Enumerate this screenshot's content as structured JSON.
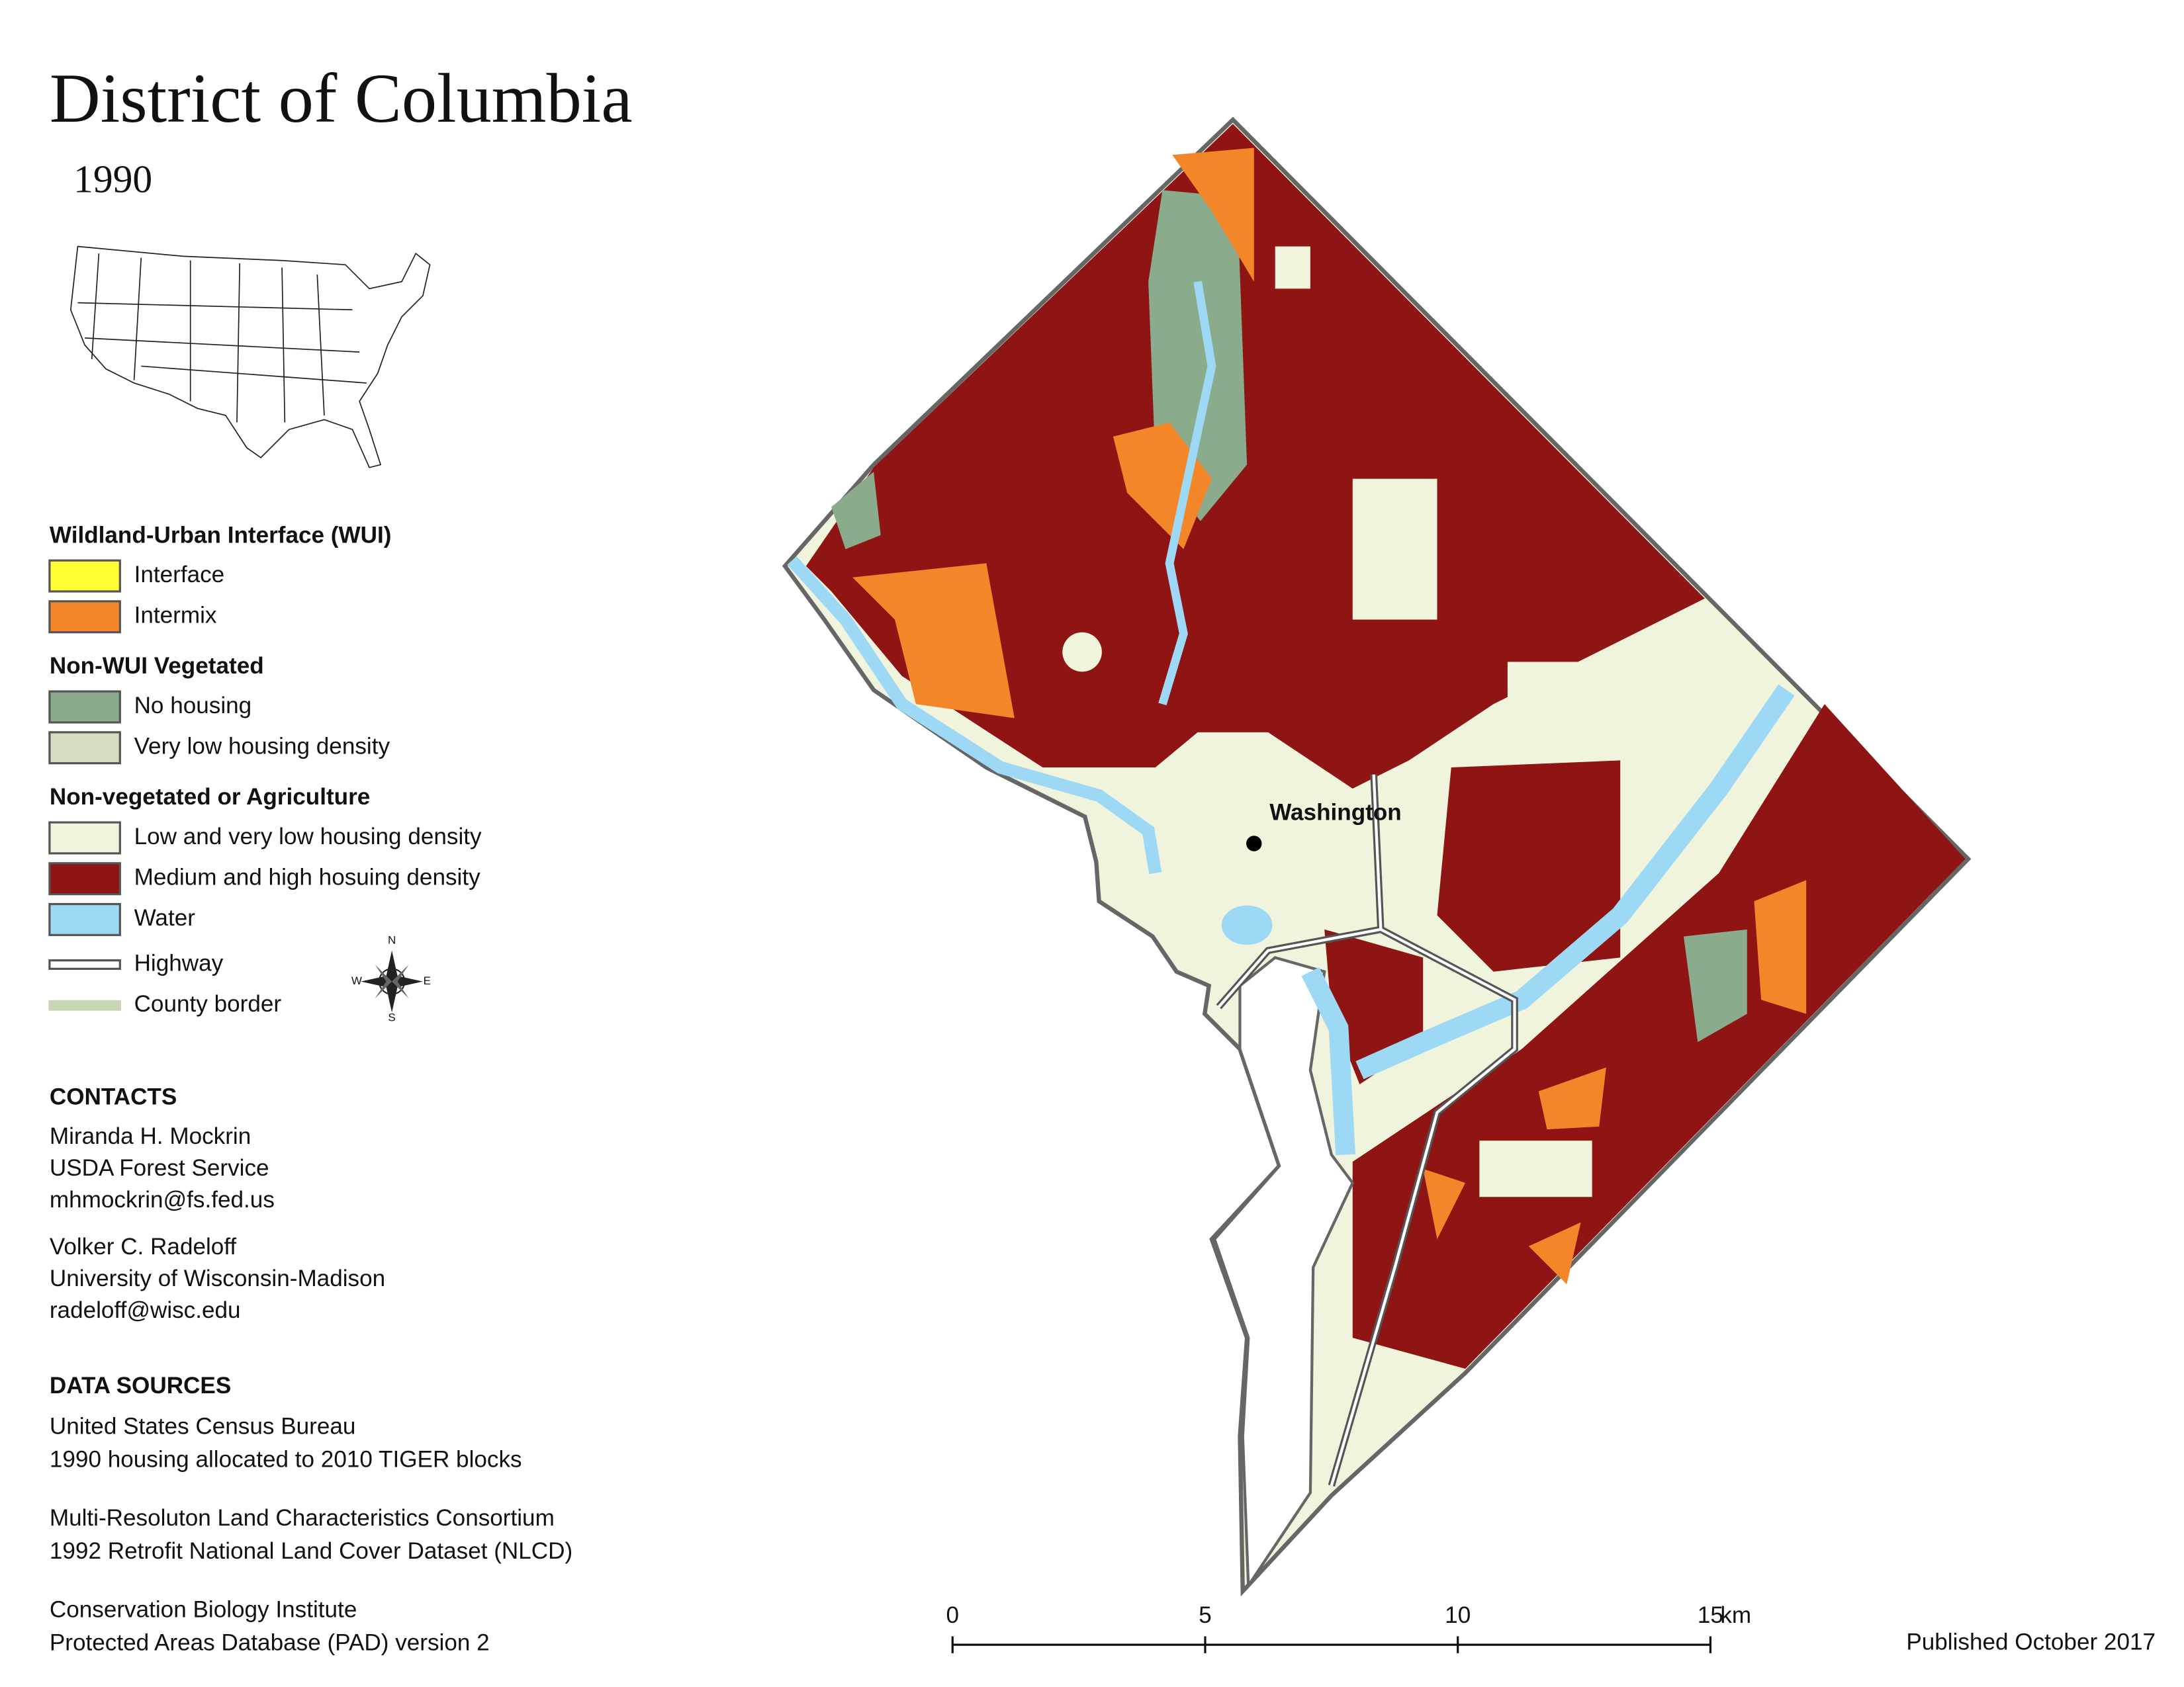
{
  "header": {
    "title": "District of Columbia",
    "subtitle": "1990"
  },
  "legend": {
    "groups": [
      {
        "heading": "Wildland-Urban Interface (WUI)",
        "items": [
          {
            "label": "Interface",
            "color": "#ffff33"
          },
          {
            "label": "Intermix",
            "color": "#f4862a"
          }
        ]
      },
      {
        "heading": "Non-WUI Vegetated",
        "items": [
          {
            "label": "No housing",
            "color": "#8aab8c"
          },
          {
            "label": "Very low housing density",
            "color": "#d3dfc0"
          }
        ]
      },
      {
        "heading": "Non-vegetated or Agriculture",
        "items": [
          {
            "label": "Low and very low housing density",
            "color": "#f1f4dc"
          },
          {
            "label": "Medium and high hosuing density",
            "color": "#8f1414"
          },
          {
            "label": "Water",
            "color": "#9dd9f5"
          }
        ]
      }
    ],
    "lines": [
      {
        "label": "Highway",
        "color": "#555555"
      },
      {
        "label": "County border",
        "color": "#c7d6b3"
      }
    ]
  },
  "compass": {
    "n": "N",
    "e": "E",
    "s": "S",
    "w": "W"
  },
  "map": {
    "place": "Washington"
  },
  "contacts": {
    "heading": "CONTACTS",
    "people": [
      [
        "Miranda H. Mockrin",
        "USDA Forest Service",
        "mhmockrin@fs.fed.us"
      ],
      [
        "Volker C. Radeloff",
        "University of Wisconsin-Madison",
        "radeloff@wisc.edu"
      ]
    ]
  },
  "data_sources": {
    "heading": "DATA SOURCES",
    "sources": [
      [
        "United States Census Bureau",
        "1990 housing allocated to 2010 TIGER blocks"
      ],
      [
        "Multi-Resoluton Land Characteristics Consortium",
        "1992 Retrofit National Land Cover Dataset (NLCD)"
      ],
      [
        "Conservation Biology Institute",
        "Protected Areas Database (PAD) version 2"
      ]
    ]
  },
  "scale_bar": {
    "ticks": [
      0,
      5,
      10,
      15
    ],
    "unit": "km"
  },
  "footer": {
    "published": "Published October 2017"
  }
}
